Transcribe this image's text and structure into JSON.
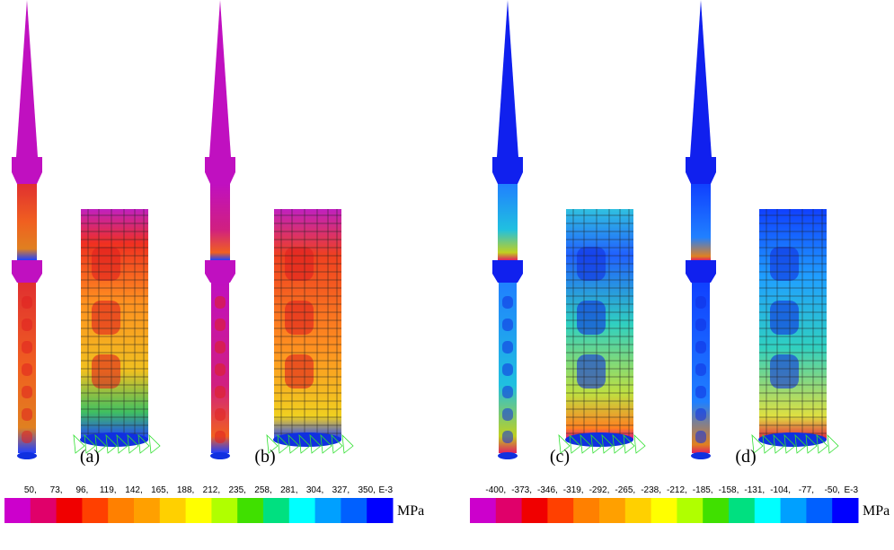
{
  "panels": [
    {
      "label": "(a)"
    },
    {
      "label": "(b)"
    },
    {
      "label": "(c)"
    },
    {
      "label": "(d)"
    }
  ],
  "legends": [
    {
      "ticks": [
        "50,",
        "73,",
        "96,",
        "119,",
        "142,",
        "165,",
        "188,",
        "212,",
        "235,",
        "258,",
        "281,",
        "304,",
        "327,",
        "350,"
      ],
      "exponent": "E-3",
      "unit": "MPa"
    },
    {
      "ticks": [
        "-400,",
        "-373,",
        "-346,",
        "-319,",
        "-292,",
        "-265,",
        "-238,",
        "-212,",
        "-185,",
        "-158,",
        "-131,",
        "-104,",
        "-77,",
        "-50,"
      ],
      "exponent": "E-3",
      "unit": "MPa"
    }
  ]
}
